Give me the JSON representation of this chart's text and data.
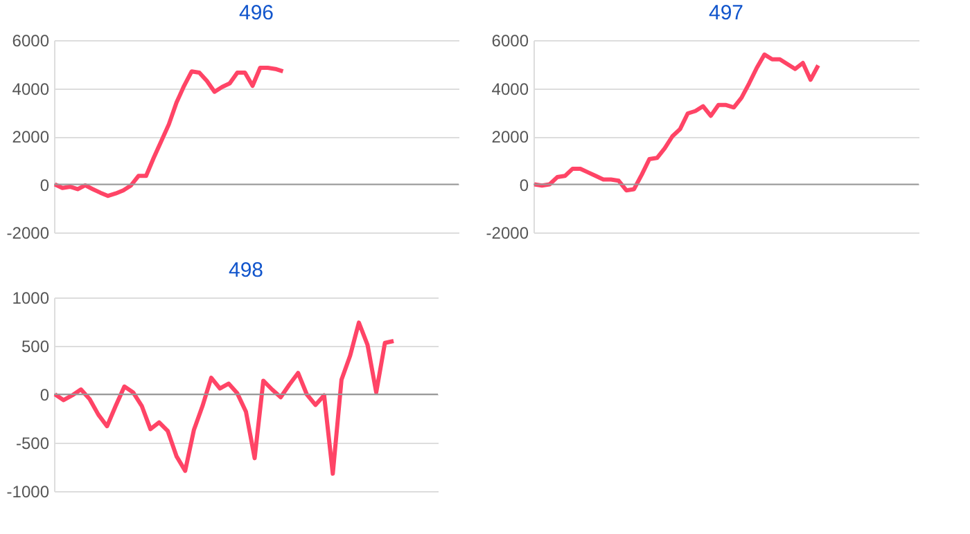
{
  "chart_data": [
    {
      "type": "line",
      "title": "496",
      "categories": [
        null,
        null,
        null,
        null,
        null,
        null,
        null,
        null,
        null,
        null,
        null,
        null,
        null,
        null,
        null,
        null,
        null,
        null,
        null,
        null,
        null,
        null,
        null,
        null,
        null,
        null,
        null,
        null,
        null,
        null,
        null,
        null,
        null,
        null,
        null,
        null,
        null,
        null,
        null,
        null,
        null,
        null,
        null,
        null,
        null,
        null,
        null,
        null,
        null,
        null,
        null,
        null,
        null,
        null
      ],
      "series": [
        {
          "color": "#ff4466",
          "values": [
            0,
            -150,
            -100,
            -200,
            -40,
            -200,
            -350,
            -480,
            -380,
            -250,
            -50,
            350,
            350,
            1100,
            1800,
            2500,
            3400,
            4100,
            4700,
            4650,
            4300,
            3850,
            4050,
            4200,
            4650,
            4650,
            4100,
            4850,
            4850,
            4800,
            4700,
            null,
            null,
            null,
            null,
            null,
            null,
            null,
            null,
            null,
            null,
            null,
            null,
            null,
            null,
            null,
            null,
            null,
            null,
            null,
            null,
            null,
            null,
            null
          ]
        }
      ],
      "ylim": [
        -2000,
        6000
      ],
      "yticks": [
        -2000,
        0,
        2000,
        4000,
        6000
      ],
      "grid": "y",
      "tick_labels": "y",
      "ref_lines": [
        {
          "axis": "y",
          "value": 0,
          "color": "#999999"
        }
      ]
    },
    {
      "type": "line",
      "title": "497",
      "categories": [
        null,
        null,
        null,
        null,
        null,
        null,
        null,
        null,
        null,
        null,
        null,
        null,
        null,
        null,
        null,
        null,
        null,
        null,
        null,
        null,
        null,
        null,
        null,
        null,
        null,
        null,
        null,
        null,
        null,
        null,
        null,
        null,
        null,
        null,
        null,
        null,
        null,
        null,
        null,
        null,
        null,
        null,
        null,
        null,
        null,
        null,
        null,
        null,
        null,
        null,
        null
      ],
      "series": [
        {
          "color": "#ff4466",
          "values": [
            0,
            -50,
            0,
            300,
            350,
            650,
            650,
            500,
            350,
            200,
            200,
            150,
            -250,
            -200,
            400,
            1050,
            1100,
            1500,
            2000,
            2300,
            2950,
            3050,
            3250,
            2850,
            3300,
            3300,
            3200,
            3600,
            4200,
            4850,
            5400,
            5200,
            5200,
            5000,
            4800,
            5050,
            4350,
            4950,
            null,
            null,
            null,
            null,
            null,
            null,
            null,
            null,
            null,
            null,
            null,
            null,
            null
          ]
        }
      ],
      "ylim": [
        -2000,
        6000
      ],
      "yticks": [
        -2000,
        0,
        2000,
        4000,
        6000
      ],
      "grid": "y",
      "tick_labels": "y",
      "ref_lines": [
        {
          "axis": "y",
          "value": 0,
          "color": "#999999"
        }
      ]
    },
    {
      "type": "line",
      "title": "498",
      "categories": [
        null,
        null,
        null,
        null,
        null,
        null,
        null,
        null,
        null,
        null,
        null,
        null,
        null,
        null,
        null,
        null,
        null,
        null,
        null,
        null,
        null,
        null,
        null,
        null,
        null,
        null,
        null,
        null,
        null,
        null,
        null,
        null,
        null,
        null,
        null,
        null,
        null,
        null,
        null,
        null,
        null,
        null,
        null,
        null,
        null
      ],
      "series": [
        {
          "color": "#ff4466",
          "values": [
            0,
            -60,
            -10,
            50,
            -50,
            -210,
            -330,
            -120,
            80,
            20,
            -120,
            -360,
            -290,
            -380,
            -640,
            -790,
            -370,
            -120,
            170,
            60,
            110,
            10,
            -180,
            -660,
            140,
            50,
            -30,
            100,
            220,
            0,
            -110,
            -10,
            -820,
            150,
            400,
            740,
            510,
            20,
            530,
            550,
            null,
            null,
            null,
            null,
            null
          ]
        }
      ],
      "ylim": [
        -1000,
        1000
      ],
      "yticks": [
        -1000,
        -500,
        0,
        500,
        1000
      ],
      "grid": "y",
      "tick_labels": "y",
      "ref_lines": [
        {
          "axis": "y",
          "value": 0,
          "color": "#999999"
        }
      ]
    }
  ]
}
